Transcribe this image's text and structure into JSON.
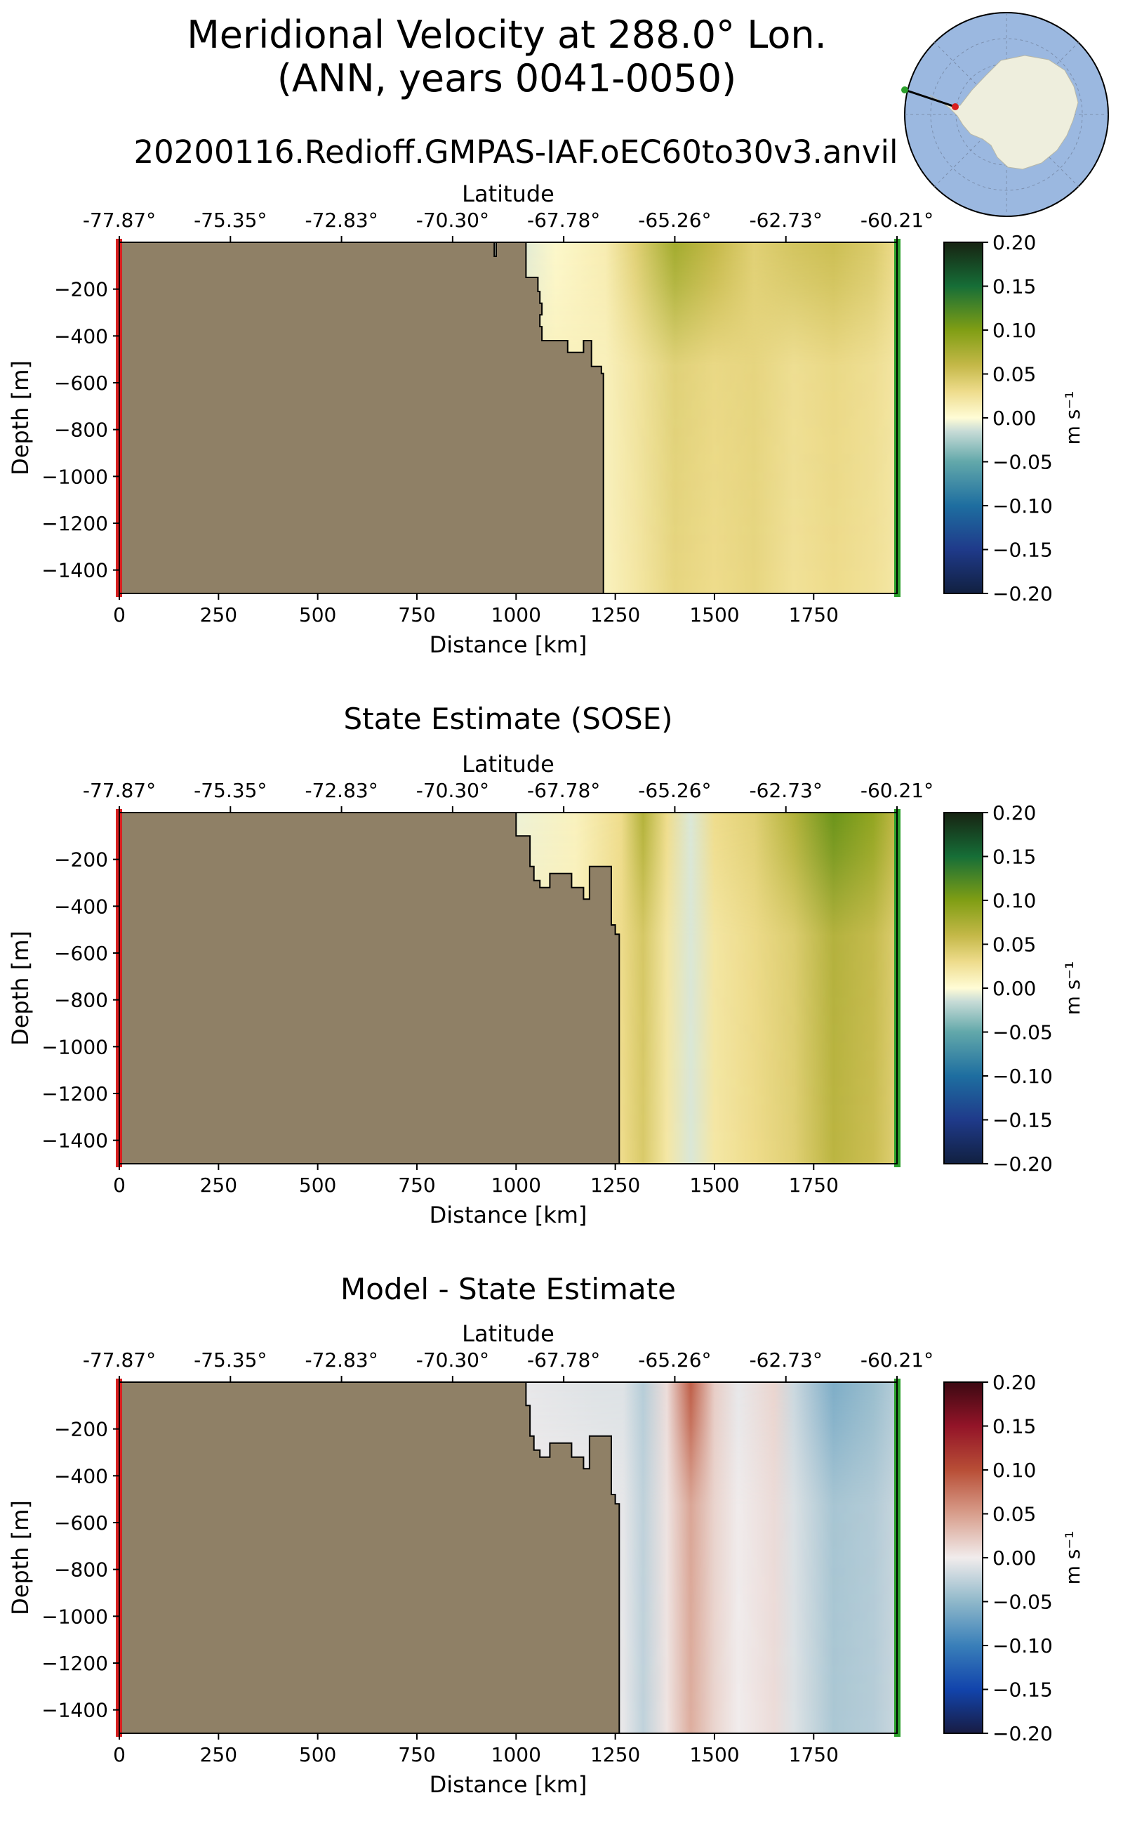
{
  "figure": {
    "title_line1": "Meridional Velocity at 288.0° Lon.",
    "title_line2": "(ANN, years 0041-0050)",
    "subtitle": "20200116.Redioff.GMPAS-IAF.oEC60to30v3.anvil"
  },
  "inset_map": {
    "description_name": "antarctic-location-map"
  },
  "colors": {
    "land": "#8f8066",
    "start_marker": "#d81f1f",
    "end_marker": "#2ca02c",
    "ocean_inset": "#9bb8e0",
    "land_inset": "#eeeedd"
  },
  "chart_data": [
    {
      "type": "heatmap",
      "panel": "model",
      "title": "",
      "xlabel": "Distance [km]",
      "ylabel": "Depth [m]",
      "top_axis_label": "Latitude",
      "x_ticks": [
        "0",
        "250",
        "500",
        "750",
        "1000",
        "1250",
        "1500",
        "1750"
      ],
      "y_ticks": [
        "−200",
        "−400",
        "−600",
        "−800",
        "−1000",
        "−1200",
        "−1400"
      ],
      "lat_ticks": [
        "-77.87°",
        "-75.35°",
        "-72.83°",
        "-70.30°",
        "-67.78°",
        "-65.26°",
        "-62.73°",
        "-60.21°"
      ],
      "xlim": [
        0,
        1960
      ],
      "ylim": [
        -1500,
        0
      ],
      "colorbar": {
        "label": "m s⁻¹",
        "ticks": [
          "0.20",
          "0.15",
          "0.10",
          "0.05",
          "0.00",
          "−0.05",
          "−0.10",
          "−0.15",
          "−0.20"
        ],
        "vmin": -0.2,
        "vmax": 0.2,
        "cmap": "delta"
      },
      "bathymetry_km_depth": [
        [
          0,
          0
        ],
        [
          945,
          0
        ],
        [
          945,
          -60
        ],
        [
          950,
          -60
        ],
        [
          950,
          0
        ],
        [
          1025,
          0
        ],
        [
          1025,
          -150
        ],
        [
          1055,
          -150
        ],
        [
          1055,
          -210
        ],
        [
          1060,
          -210
        ],
        [
          1060,
          -260
        ],
        [
          1065,
          -260
        ],
        [
          1065,
          -310
        ],
        [
          1060,
          -310
        ],
        [
          1060,
          -360
        ],
        [
          1065,
          -360
        ],
        [
          1065,
          -420
        ],
        [
          1130,
          -420
        ],
        [
          1130,
          -470
        ],
        [
          1170,
          -470
        ],
        [
          1170,
          -420
        ],
        [
          1190,
          -420
        ],
        [
          1190,
          -530
        ],
        [
          1215,
          -530
        ],
        [
          1215,
          -560
        ],
        [
          1220,
          -560
        ],
        [
          1220,
          -1500
        ],
        [
          0,
          -1500
        ]
      ],
      "velocity_columns": [
        {
          "x_km": 1000,
          "surface": -0.01,
          "deep": 0.01
        },
        {
          "x_km": 1100,
          "surface": 0.005,
          "deep": 0.01
        },
        {
          "x_km": 1225,
          "surface": 0.015,
          "deep": 0.01
        },
        {
          "x_km": 1300,
          "surface": 0.04,
          "deep": 0.02
        },
        {
          "x_km": 1400,
          "surface": 0.08,
          "deep": 0.035
        },
        {
          "x_km": 1500,
          "surface": 0.06,
          "deep": 0.03
        },
        {
          "x_km": 1600,
          "surface": 0.04,
          "deep": 0.035
        },
        {
          "x_km": 1700,
          "surface": 0.05,
          "deep": 0.025
        },
        {
          "x_km": 1800,
          "surface": 0.055,
          "deep": 0.03
        },
        {
          "x_km": 1900,
          "surface": 0.045,
          "deep": 0.025
        },
        {
          "x_km": 1960,
          "surface": 0.03,
          "deep": 0.02
        }
      ]
    },
    {
      "type": "heatmap",
      "panel": "obs",
      "title": "State Estimate (SOSE)",
      "xlabel": "Distance [km]",
      "ylabel": "Depth [m]",
      "top_axis_label": "Latitude",
      "x_ticks": [
        "0",
        "250",
        "500",
        "750",
        "1000",
        "1250",
        "1500",
        "1750"
      ],
      "y_ticks": [
        "−200",
        "−400",
        "−600",
        "−800",
        "−1000",
        "−1200",
        "−1400"
      ],
      "lat_ticks": [
        "-77.87°",
        "-75.35°",
        "-72.83°",
        "-70.30°",
        "-67.78°",
        "-65.26°",
        "-62.73°",
        "-60.21°"
      ],
      "xlim": [
        0,
        1960
      ],
      "ylim": [
        -1500,
        0
      ],
      "colorbar": {
        "label": "m s⁻¹",
        "ticks": [
          "0.20",
          "0.15",
          "0.10",
          "0.05",
          "0.00",
          "−0.05",
          "−0.10",
          "−0.15",
          "−0.20"
        ],
        "vmin": -0.2,
        "vmax": 0.2,
        "cmap": "delta"
      },
      "bathymetry_km_depth": [
        [
          0,
          0
        ],
        [
          1000,
          0
        ],
        [
          1000,
          -100
        ],
        [
          1035,
          -100
        ],
        [
          1035,
          -230
        ],
        [
          1045,
          -230
        ],
        [
          1045,
          -290
        ],
        [
          1060,
          -290
        ],
        [
          1060,
          -320
        ],
        [
          1085,
          -320
        ],
        [
          1085,
          -260
        ],
        [
          1140,
          -260
        ],
        [
          1140,
          -320
        ],
        [
          1170,
          -320
        ],
        [
          1170,
          -370
        ],
        [
          1185,
          -370
        ],
        [
          1185,
          -230
        ],
        [
          1240,
          -230
        ],
        [
          1240,
          -480
        ],
        [
          1250,
          -480
        ],
        [
          1250,
          -520
        ],
        [
          1260,
          -520
        ],
        [
          1260,
          -1500
        ],
        [
          0,
          -1500
        ]
      ],
      "velocity_columns": [
        {
          "x_km": 1000,
          "surface": -0.005,
          "deep": 0.01
        },
        {
          "x_km": 1150,
          "surface": 0.01,
          "deep": 0.01
        },
        {
          "x_km": 1265,
          "surface": 0.03,
          "deep": 0.03
        },
        {
          "x_km": 1320,
          "surface": 0.07,
          "deep": 0.045
        },
        {
          "x_km": 1380,
          "surface": 0.03,
          "deep": 0.02
        },
        {
          "x_km": 1440,
          "surface": -0.01,
          "deep": -0.01
        },
        {
          "x_km": 1500,
          "surface": 0.03,
          "deep": 0.02
        },
        {
          "x_km": 1600,
          "surface": 0.04,
          "deep": 0.03
        },
        {
          "x_km": 1700,
          "surface": 0.07,
          "deep": 0.04
        },
        {
          "x_km": 1800,
          "surface": 0.11,
          "deep": 0.065
        },
        {
          "x_km": 1900,
          "surface": 0.09,
          "deep": 0.055
        },
        {
          "x_km": 1960,
          "surface": 0.06,
          "deep": 0.04
        }
      ]
    },
    {
      "type": "heatmap",
      "panel": "bias",
      "title": "Model - State Estimate",
      "xlabel": "Distance [km]",
      "ylabel": "Depth [m]",
      "top_axis_label": "Latitude",
      "x_ticks": [
        "0",
        "250",
        "500",
        "750",
        "1000",
        "1250",
        "1500",
        "1750"
      ],
      "y_ticks": [
        "−200",
        "−400",
        "−600",
        "−800",
        "−1000",
        "−1200",
        "−1400"
      ],
      "lat_ticks": [
        "-77.87°",
        "-75.35°",
        "-72.83°",
        "-70.30°",
        "-67.78°",
        "-65.26°",
        "-62.73°",
        "-60.21°"
      ],
      "xlim": [
        0,
        1960
      ],
      "ylim": [
        -1500,
        0
      ],
      "colorbar": {
        "label": "m s⁻¹",
        "ticks": [
          "0.20",
          "0.15",
          "0.10",
          "0.05",
          "0.00",
          "−0.05",
          "−0.10",
          "−0.15",
          "−0.20"
        ],
        "vmin": -0.2,
        "vmax": 0.2,
        "cmap": "balance"
      },
      "bathymetry_km_depth": [
        [
          0,
          0
        ],
        [
          1025,
          0
        ],
        [
          1025,
          -100
        ],
        [
          1035,
          -100
        ],
        [
          1035,
          -230
        ],
        [
          1045,
          -230
        ],
        [
          1045,
          -290
        ],
        [
          1060,
          -290
        ],
        [
          1060,
          -320
        ],
        [
          1085,
          -320
        ],
        [
          1085,
          -260
        ],
        [
          1140,
          -260
        ],
        [
          1140,
          -320
        ],
        [
          1170,
          -320
        ],
        [
          1170,
          -370
        ],
        [
          1185,
          -370
        ],
        [
          1185,
          -230
        ],
        [
          1240,
          -230
        ],
        [
          1240,
          -480
        ],
        [
          1250,
          -480
        ],
        [
          1250,
          -520
        ],
        [
          1260,
          -520
        ],
        [
          1260,
          -1500
        ],
        [
          0,
          -1500
        ]
      ],
      "velocity_columns": [
        {
          "x_km": 1025,
          "surface": -0.005,
          "deep": 0.0
        },
        {
          "x_km": 1200,
          "surface": -0.01,
          "deep": 0.0
        },
        {
          "x_km": 1270,
          "surface": -0.01,
          "deep": -0.005
        },
        {
          "x_km": 1320,
          "surface": -0.03,
          "deep": -0.025
        },
        {
          "x_km": 1380,
          "surface": 0.01,
          "deep": 0.005
        },
        {
          "x_km": 1440,
          "surface": 0.09,
          "deep": 0.04
        },
        {
          "x_km": 1500,
          "surface": 0.02,
          "deep": 0.015
        },
        {
          "x_km": 1560,
          "surface": -0.005,
          "deep": 0.0
        },
        {
          "x_km": 1650,
          "surface": 0.015,
          "deep": 0.01
        },
        {
          "x_km": 1700,
          "surface": -0.02,
          "deep": -0.01
        },
        {
          "x_km": 1800,
          "surface": -0.06,
          "deep": -0.035
        },
        {
          "x_km": 1900,
          "surface": -0.045,
          "deep": -0.03
        },
        {
          "x_km": 1960,
          "surface": -0.03,
          "deep": -0.02
        }
      ]
    }
  ]
}
